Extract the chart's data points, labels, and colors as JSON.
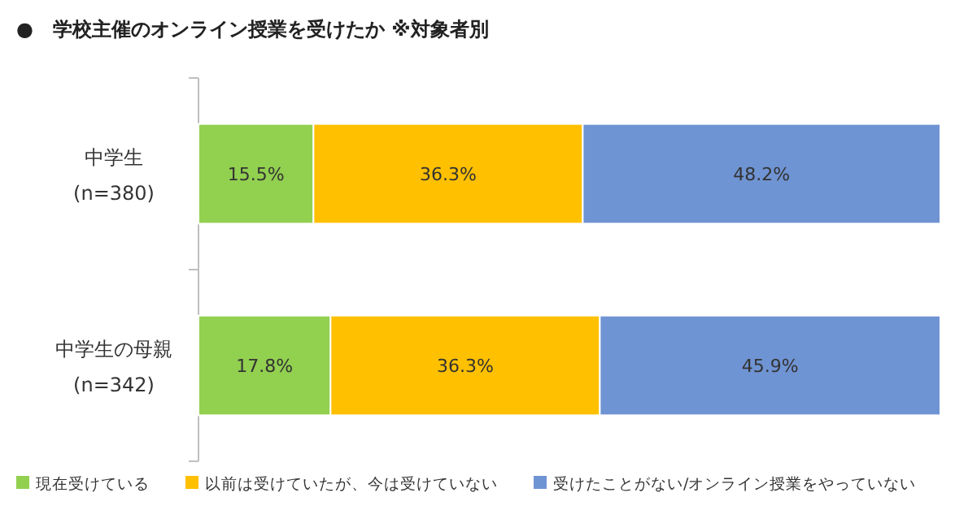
{
  "chart_data": {
    "type": "bar",
    "orientation": "horizontal",
    "stacked": true,
    "title": "●　学校主催のオンライン授業を受けたか ※対象者別",
    "categories": [
      "中学生\n(n=380)",
      "中学生の母親\n(n=342)"
    ],
    "series": [
      {
        "name": "現在受けている",
        "color": "#92d050",
        "values": [
          15.5,
          17.8
        ],
        "value_labels": [
          "15.5%",
          "17.8%"
        ]
      },
      {
        "name": "以前は受けていたが、今は受けていない",
        "color": "#ffc000",
        "values": [
          36.3,
          36.3
        ],
        "value_labels": [
          "36.3%",
          "36.3%"
        ]
      },
      {
        "name": "受けたことがない/オンライン授業をやっていない",
        "color": "#6f94d3",
        "values": [
          48.2,
          45.9
        ],
        "value_labels": [
          "48.2%",
          "45.9%"
        ]
      }
    ],
    "legend": "bottom"
  }
}
